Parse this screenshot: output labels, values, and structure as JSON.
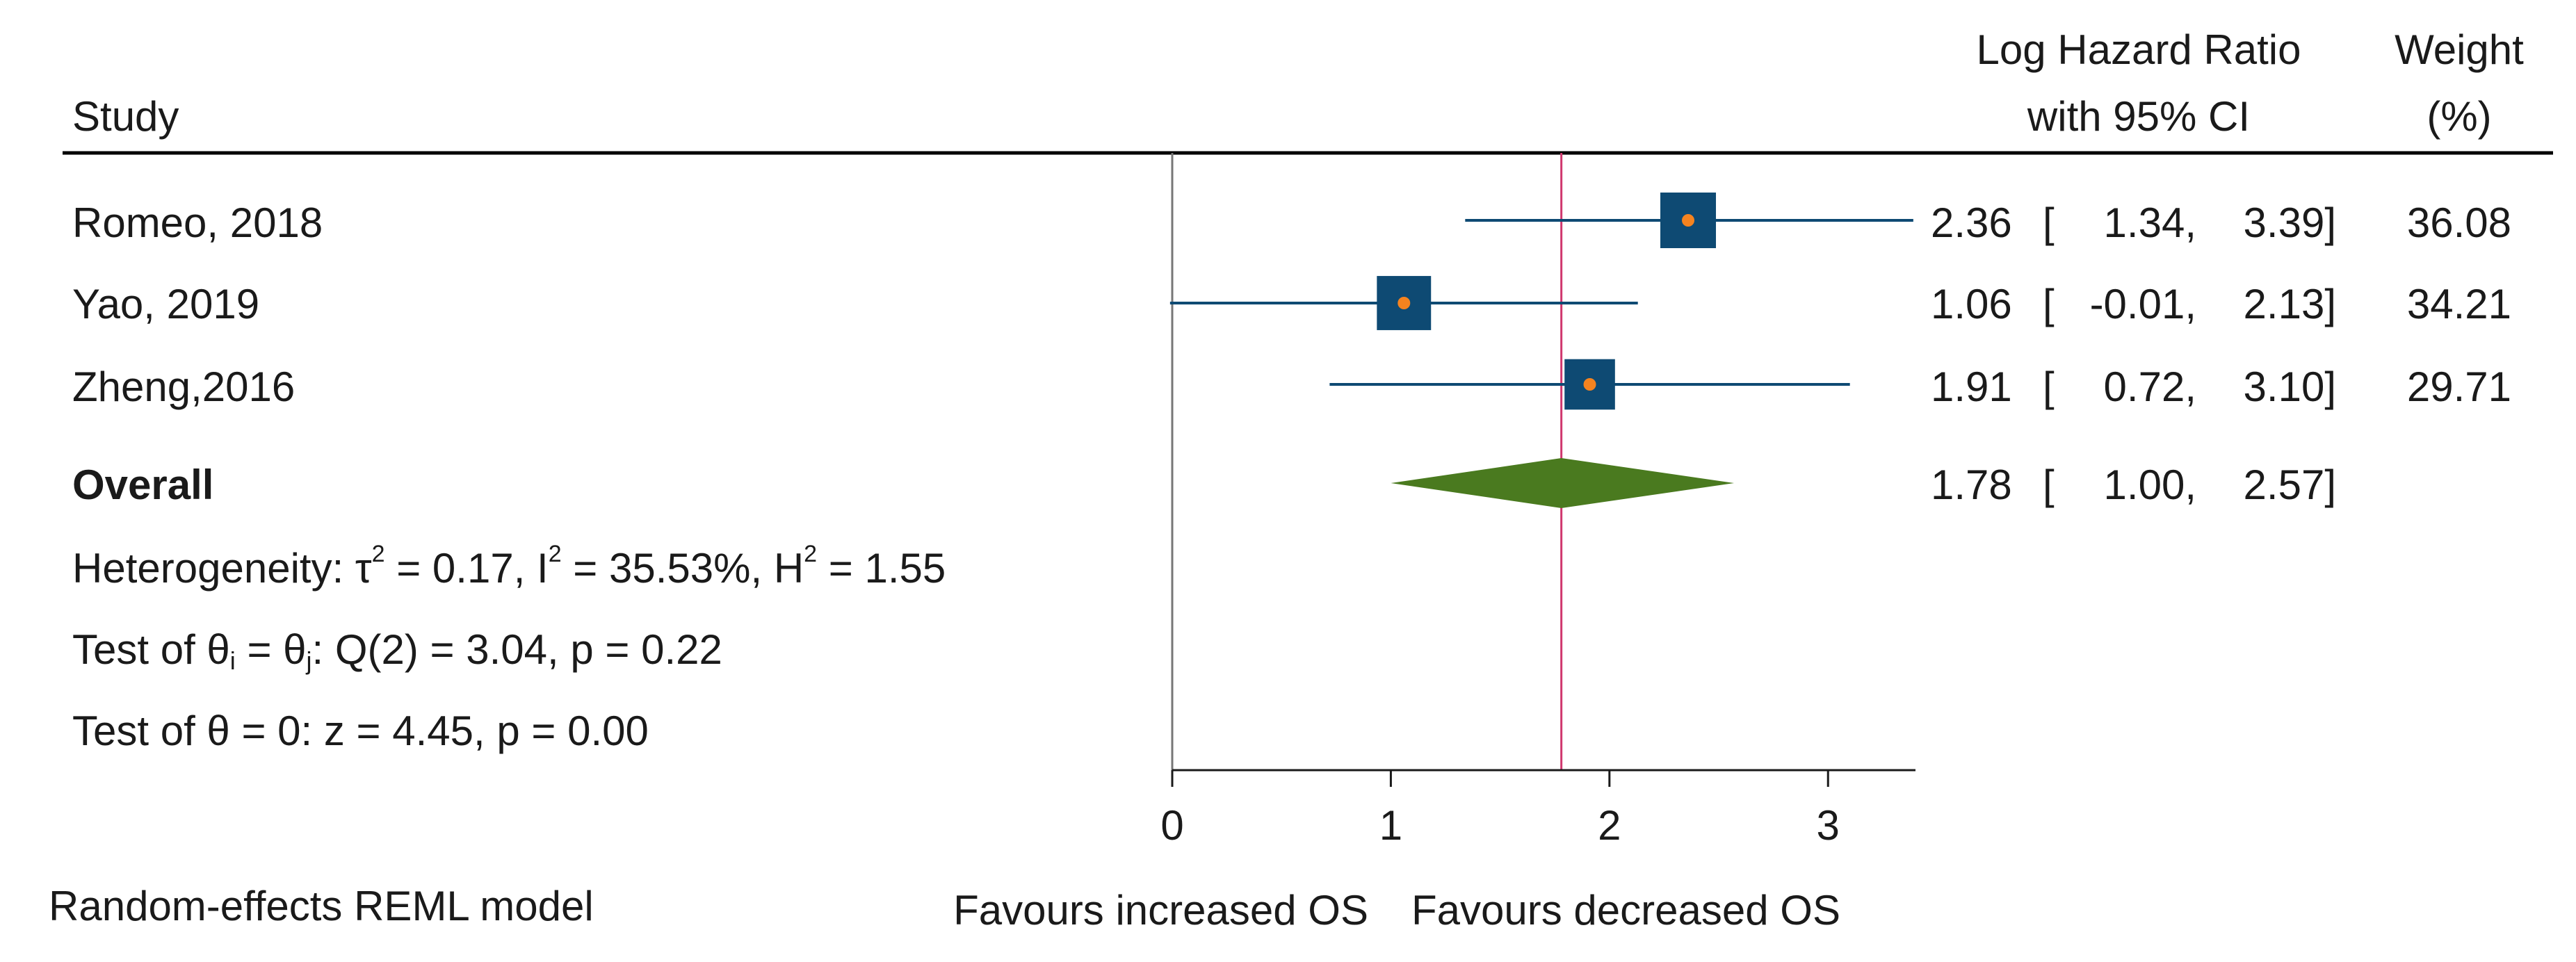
{
  "chart_data": {
    "type": "forest",
    "header": {
      "study": "Study",
      "estimate_line1": "Log Hazard Ratio",
      "estimate_line2": "with 95% CI",
      "weight_line1": "Weight",
      "weight_line2": "(%)"
    },
    "studies": [
      {
        "name": "Romeo, 2018",
        "estimate": 2.36,
        "ci_low": 1.34,
        "ci_high": 3.39,
        "weight": 36.08,
        "est_text": "2.36",
        "low_text": "1.34,",
        "high_text": "3.39]",
        "weight_text": "36.08"
      },
      {
        "name": "Yao, 2019",
        "estimate": 1.06,
        "ci_low": -0.01,
        "ci_high": 2.13,
        "weight": 34.21,
        "est_text": "1.06",
        "low_text": "-0.01,",
        "high_text": "2.13]",
        "weight_text": "34.21"
      },
      {
        "name": "Zheng,2016",
        "estimate": 1.91,
        "ci_low": 0.72,
        "ci_high": 3.1,
        "weight": 29.71,
        "est_text": "1.91",
        "low_text": "0.72,",
        "high_text": "3.10]",
        "weight_text": "29.71"
      }
    ],
    "overall": {
      "label": "Overall",
      "estimate": 1.78,
      "ci_low": 1.0,
      "ci_high": 2.57,
      "est_text": "1.78",
      "low_text": "1.00,",
      "high_text": "2.57]"
    },
    "heterogeneity": {
      "prefix": "Heterogeneity: τ",
      "sup1": "2",
      "part2": " = 0.17, I",
      "sup2": "2",
      "part3": " = 35.53%, H",
      "sup3": "2",
      "part4": " = 1.55"
    },
    "test_homogeneity": {
      "prefix": "Test of θ",
      "sub1": "i",
      "part2": " = θ",
      "sub2": "j",
      "part3": ": Q(2) = 3.04, p = 0.22"
    },
    "test_overall": "Test of θ = 0: z = 4.45, p = 0.00",
    "x_axis": {
      "min": 0,
      "max": 3.4,
      "ticks": [
        0,
        1,
        2,
        3
      ],
      "tick_labels": [
        "0",
        "1",
        "2",
        "3"
      ],
      "null_value": 0
    },
    "left_footer": "Random-effects REML model",
    "favours_left": "Favours increased OS",
    "favours_right": "Favours decreased OS",
    "colors": {
      "box": "#0e4a73",
      "dot": "#f5831f",
      "ci_line": "#0e4a73",
      "diamond": "#4a7a1f",
      "overall_line": "#d0386e",
      "null_line": "#777777",
      "rule": "#000000"
    }
  }
}
